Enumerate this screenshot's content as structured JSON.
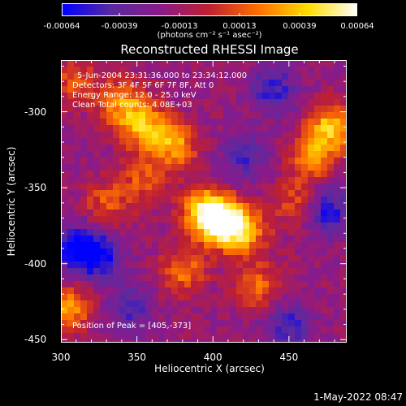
{
  "chart_data": {
    "type": "heatmap",
    "title": "Reconstructed RHESSI Image",
    "xlabel": "Heliocentric X (arcsec)",
    "ylabel": "Heliocentric Y (arcsec)",
    "xlim": [
      300,
      488
    ],
    "ylim": [
      -452,
      -266
    ],
    "x_ticks": [
      "300",
      "350",
      "400",
      "450"
    ],
    "x_tick_values": [
      300,
      350,
      400,
      450
    ],
    "y_ticks": [
      "-300",
      "-350",
      "-400",
      "-450"
    ],
    "y_tick_values": [
      -300,
      -350,
      -400,
      -450
    ],
    "colorbar": {
      "range": [
        -0.00064,
        0.00064
      ],
      "ticks": [
        "-0.00064",
        "-0.00039",
        "-0.00013",
        "0.00013",
        "0.00039",
        "0.00064"
      ],
      "tick_values": [
        -0.00064,
        -0.00039,
        -0.00013,
        0.00013,
        0.00039,
        0.00064
      ],
      "units_text": "(photons cm⁻² s⁻¹ asec⁻²)",
      "colors": [
        "#0000ff",
        "#5a2aa0",
        "#8a1a8a",
        "#c02030",
        "#ff7000",
        "#ffdd00",
        "#ffffff"
      ]
    },
    "info_lines": [
      "5-Jun-2004 23:31:36.000 to 23:34:12.000",
      "Detectors: 3F 4F 5F 6F 7F 8F, Att 0",
      "Energy Range: 12.0 - 25.0 keV",
      "Clean     Total counts: 4.08E+03"
    ],
    "peak_text": "Position of Peak = [405,-373]",
    "peak": [
      405,
      -373
    ],
    "bright_regions": [
      {
        "x": 405,
        "y": -373,
        "v": 0.00064
      },
      {
        "x": 395,
        "y": -365,
        "v": 0.00055
      },
      {
        "x": 420,
        "y": -378,
        "v": 0.00052
      },
      {
        "x": 355,
        "y": -310,
        "v": 0.00048
      },
      {
        "x": 375,
        "y": -322,
        "v": 0.00045
      },
      {
        "x": 340,
        "y": -295,
        "v": 0.00042
      },
      {
        "x": 478,
        "y": -310,
        "v": 0.00055
      },
      {
        "x": 465,
        "y": -330,
        "v": 0.0004
      },
      {
        "x": 305,
        "y": -430,
        "v": 0.00045
      },
      {
        "x": 380,
        "y": -405,
        "v": 0.00038
      },
      {
        "x": 430,
        "y": -415,
        "v": 0.00035
      },
      {
        "x": 330,
        "y": -360,
        "v": 0.0003
      },
      {
        "x": 355,
        "y": -345,
        "v": 0.0003
      },
      {
        "x": 455,
        "y": -360,
        "v": 0.0003
      },
      {
        "x": 310,
        "y": -280,
        "v": 0.0003
      }
    ],
    "dark_regions": [
      {
        "x": 310,
        "y": -390,
        "v": -0.00045
      },
      {
        "x": 475,
        "y": -365,
        "v": -0.00042
      },
      {
        "x": 325,
        "y": -395,
        "v": -0.0004
      },
      {
        "x": 440,
        "y": -285,
        "v": -0.00035
      },
      {
        "x": 450,
        "y": -440,
        "v": -0.00035
      },
      {
        "x": 420,
        "y": -330,
        "v": -0.0003
      },
      {
        "x": 345,
        "y": -430,
        "v": -0.0003
      }
    ]
  },
  "timestamp": "1-May-2022 08:47"
}
